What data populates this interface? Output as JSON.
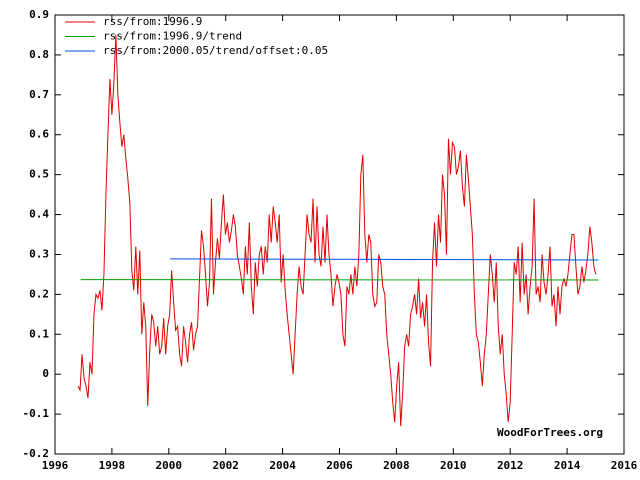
{
  "chart_data": {
    "type": "line",
    "xlim": [
      1996,
      2016
    ],
    "xticks": [
      1996,
      1998,
      2000,
      2002,
      2004,
      2006,
      2008,
      2010,
      2012,
      2014,
      2016
    ],
    "ylim": [
      -0.2,
      0.9
    ],
    "yticks": [
      -0.2,
      -0.1,
      0,
      0.1,
      0.2,
      0.3,
      0.4,
      0.5,
      0.6,
      0.7,
      0.8,
      0.9
    ],
    "legend": "upper left",
    "annotation": "WoodForTrees.org",
    "series": [
      {
        "name": "rss/from:1996.9",
        "color": "#e00000",
        "x": [
          1996.81,
          1996.88,
          1996.95,
          1997.02,
          1997.09,
          1997.16,
          1997.23,
          1997.3,
          1997.37,
          1997.44,
          1997.51,
          1997.58,
          1997.65,
          1997.72,
          1997.79,
          1997.86,
          1997.93,
          1998,
          1998.07,
          1998.14,
          1998.21,
          1998.28,
          1998.35,
          1998.42,
          1998.49,
          1998.56,
          1998.63,
          1998.7,
          1998.77,
          1998.84,
          1998.91,
          1998.98,
          1999.05,
          1999.12,
          1999.19,
          1999.26,
          1999.33,
          1999.4,
          1999.47,
          1999.54,
          1999.61,
          1999.68,
          1999.75,
          1999.82,
          1999.89,
          1999.96,
          2000.03,
          2000.1,
          2000.17,
          2000.24,
          2000.31,
          2000.38,
          2000.45,
          2000.52,
          2000.59,
          2000.66,
          2000.73,
          2000.8,
          2000.87,
          2000.94,
          2001.01,
          2001.08,
          2001.15,
          2001.22,
          2001.29,
          2001.36,
          2001.43,
          2001.5,
          2001.57,
          2001.64,
          2001.71,
          2001.78,
          2001.85,
          2001.92,
          2001.99,
          2002.06,
          2002.13,
          2002.2,
          2002.27,
          2002.34,
          2002.41,
          2002.48,
          2002.55,
          2002.62,
          2002.69,
          2002.76,
          2002.83,
          2002.9,
          2002.97,
          2003.04,
          2003.11,
          2003.18,
          2003.25,
          2003.32,
          2003.39,
          2003.46,
          2003.53,
          2003.6,
          2003.67,
          2003.74,
          2003.81,
          2003.88,
          2003.95,
          2004.02,
          2004.09,
          2004.16,
          2004.23,
          2004.3,
          2004.37,
          2004.44,
          2004.51,
          2004.58,
          2004.65,
          2004.72,
          2004.79,
          2004.86,
          2004.93,
          2005,
          2005.07,
          2005.14,
          2005.21,
          2005.28,
          2005.35,
          2005.42,
          2005.49,
          2005.56,
          2005.63,
          2005.7,
          2005.77,
          2005.84,
          2005.91,
          2005.98,
          2006.05,
          2006.12,
          2006.19,
          2006.26,
          2006.33,
          2006.4,
          2006.47,
          2006.54,
          2006.61,
          2006.68,
          2006.75,
          2006.82,
          2006.89,
          2006.96,
          2007.03,
          2007.1,
          2007.17,
          2007.24,
          2007.31,
          2007.38,
          2007.45,
          2007.52,
          2007.59,
          2007.66,
          2007.73,
          2007.8,
          2007.87,
          2007.94,
          2008.01,
          2008.08,
          2008.15,
          2008.22,
          2008.29,
          2008.36,
          2008.43,
          2008.5,
          2008.57,
          2008.64,
          2008.71,
          2008.78,
          2008.85,
          2008.92,
          2008.99,
          2009.06,
          2009.13,
          2009.2,
          2009.27,
          2009.34,
          2009.41,
          2009.48,
          2009.55,
          2009.62,
          2009.69,
          2009.76,
          2009.83,
          2009.9,
          2009.97,
          2010.04,
          2010.11,
          2010.18,
          2010.25,
          2010.32,
          2010.39,
          2010.46,
          2010.53,
          2010.6,
          2010.67,
          2010.74,
          2010.81,
          2010.88,
          2010.95,
          2011.02,
          2011.09,
          2011.16,
          2011.23,
          2011.3,
          2011.37,
          2011.44,
          2011.51,
          2011.58,
          2011.65,
          2011.72,
          2011.79,
          2011.86,
          2011.93,
          2012,
          2012.07,
          2012.14,
          2012.21,
          2012.28,
          2012.35,
          2012.42,
          2012.49,
          2012.56,
          2012.63,
          2012.7,
          2012.77,
          2012.84,
          2012.91,
          2012.98,
          2013.05,
          2013.12,
          2013.19,
          2013.26,
          2013.33,
          2013.4,
          2013.47,
          2013.54,
          2013.61,
          2013.68,
          2013.75,
          2013.82,
          2013.89,
          2013.96,
          2014.03,
          2014.1,
          2014.17,
          2014.24,
          2014.31,
          2014.38,
          2014.45,
          2014.52,
          2014.59,
          2014.66,
          2014.73,
          2014.8,
          2014.87,
          2014.94,
          2015.01
        ],
        "values": [
          -0.03,
          -0.04,
          0.05,
          -0.01,
          -0.03,
          -0.06,
          0.03,
          0.0,
          0.15,
          0.2,
          0.19,
          0.21,
          0.16,
          0.25,
          0.45,
          0.6,
          0.74,
          0.65,
          0.73,
          0.85,
          0.7,
          0.63,
          0.57,
          0.6,
          0.54,
          0.49,
          0.43,
          0.26,
          0.21,
          0.32,
          0.2,
          0.31,
          0.1,
          0.18,
          0.12,
          -0.08,
          0.06,
          0.15,
          0.13,
          0.07,
          0.12,
          0.05,
          0.07,
          0.14,
          0.05,
          0.12,
          0.15,
          0.26,
          0.18,
          0.11,
          0.12,
          0.05,
          0.02,
          0.12,
          0.08,
          0.03,
          0.1,
          0.13,
          0.06,
          0.1,
          0.12,
          0.24,
          0.36,
          0.32,
          0.25,
          0.17,
          0.23,
          0.44,
          0.2,
          0.28,
          0.34,
          0.29,
          0.38,
          0.45,
          0.35,
          0.38,
          0.33,
          0.36,
          0.4,
          0.37,
          0.3,
          0.27,
          0.24,
          0.2,
          0.32,
          0.25,
          0.38,
          0.22,
          0.15,
          0.28,
          0.22,
          0.3,
          0.32,
          0.25,
          0.32,
          0.28,
          0.4,
          0.33,
          0.42,
          0.38,
          0.33,
          0.4,
          0.23,
          0.3,
          0.21,
          0.15,
          0.1,
          0.05,
          0.0,
          0.1,
          0.2,
          0.27,
          0.22,
          0.2,
          0.3,
          0.4,
          0.35,
          0.33,
          0.44,
          0.28,
          0.42,
          0.3,
          0.27,
          0.37,
          0.28,
          0.4,
          0.3,
          0.25,
          0.17,
          0.22,
          0.25,
          0.23,
          0.2,
          0.1,
          0.07,
          0.22,
          0.2,
          0.25,
          0.2,
          0.27,
          0.22,
          0.3,
          0.5,
          0.55,
          0.35,
          0.28,
          0.35,
          0.33,
          0.2,
          0.17,
          0.18,
          0.3,
          0.28,
          0.22,
          0.2,
          0.1,
          0.05,
          0.0,
          -0.07,
          -0.12,
          -0.03,
          0.03,
          -0.13,
          -0.05,
          0.07,
          0.1,
          0.07,
          0.15,
          0.17,
          0.2,
          0.15,
          0.24,
          0.14,
          0.18,
          0.12,
          0.2,
          0.08,
          0.02,
          0.28,
          0.38,
          0.27,
          0.4,
          0.33,
          0.5,
          0.45,
          0.3,
          0.59,
          0.5,
          0.58,
          0.57,
          0.5,
          0.52,
          0.56,
          0.47,
          0.42,
          0.55,
          0.49,
          0.42,
          0.35,
          0.2,
          0.1,
          0.08,
          0.03,
          -0.03,
          0.05,
          0.1,
          0.2,
          0.3,
          0.25,
          0.18,
          0.28,
          0.12,
          0.05,
          0.1,
          0.0,
          -0.05,
          -0.12,
          -0.07,
          0.1,
          0.28,
          0.25,
          0.32,
          0.18,
          0.33,
          0.2,
          0.25,
          0.15,
          0.22,
          0.27,
          0.44,
          0.2,
          0.22,
          0.18,
          0.3,
          0.23,
          0.2,
          0.25,
          0.32,
          0.17,
          0.2,
          0.12,
          0.22,
          0.15,
          0.22,
          0.24,
          0.22,
          0.25,
          0.3,
          0.35,
          0.35,
          0.27,
          0.2,
          0.22,
          0.27,
          0.23,
          0.26,
          0.3,
          0.37,
          0.33,
          0.27,
          0.25
        ]
      },
      {
        "name": "rss/from:1996.9/trend",
        "color": "#00a000",
        "x": [
          1996.9,
          2015.1
        ],
        "values": [
          0.237,
          0.236
        ]
      },
      {
        "name": "rss/from:2000.05/trend/offset:0.05",
        "color": "#0050e0",
        "x": [
          2000.05,
          2015.1
        ],
        "values": [
          0.289,
          0.286
        ]
      }
    ]
  }
}
